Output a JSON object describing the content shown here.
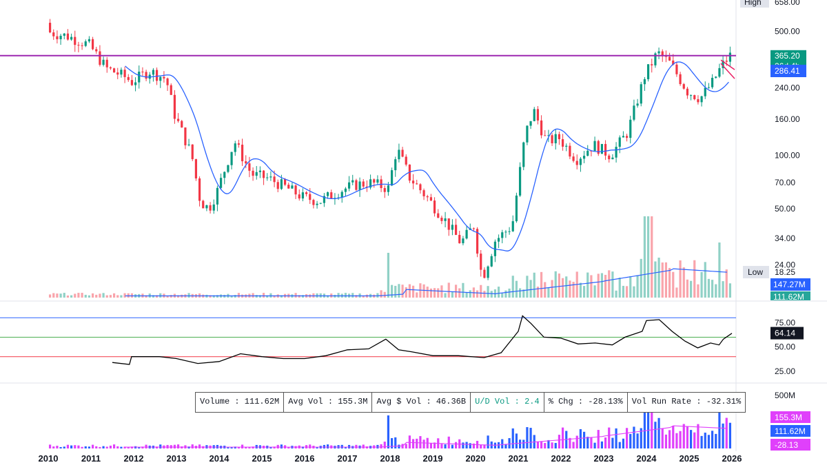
{
  "chart_data": {
    "type": "candlestick",
    "price_scale": "log",
    "price_axis_ticks": [
      "658.00",
      "500.00",
      "365.20",
      "240.00",
      "160.00",
      "100.00",
      "70.00",
      "50.00",
      "34.00",
      "24.00",
      "18.25"
    ],
    "price_ticks_numeric": [
      658,
      500,
      365.2,
      240,
      160,
      100,
      70,
      50,
      34,
      24,
      18.25
    ],
    "high": {
      "label": "High",
      "value": "658.00"
    },
    "low": {
      "label": "Low",
      "value": "18.25"
    },
    "last_price": "365.20",
    "countdown": "26d 4h",
    "moving_average": "286.41",
    "horizontal_line": 365.2,
    "volume_ma_value": "147.27M",
    "volume_last": "111.62M",
    "x_ticks": [
      "2010",
      "2011",
      "2012",
      "2013",
      "2014",
      "2015",
      "2016",
      "2017",
      "2018",
      "2019",
      "2020",
      "2021",
      "2022",
      "2023",
      "2024",
      "2025",
      "2026"
    ],
    "ohlc_close_approx": [
      {
        "t": 2010.0,
        "v": 500
      },
      {
        "t": 2010.5,
        "v": 470
      },
      {
        "t": 2011.0,
        "v": 420
      },
      {
        "t": 2011.4,
        "v": 310
      },
      {
        "t": 2011.8,
        "v": 280
      },
      {
        "t": 2012.0,
        "v": 260
      },
      {
        "t": 2012.4,
        "v": 300
      },
      {
        "t": 2012.8,
        "v": 270
      },
      {
        "t": 2013.0,
        "v": 170
      },
      {
        "t": 2013.4,
        "v": 100
      },
      {
        "t": 2013.6,
        "v": 55
      },
      {
        "t": 2013.8,
        "v": 50
      },
      {
        "t": 2014.0,
        "v": 63
      },
      {
        "t": 2014.4,
        "v": 120
      },
      {
        "t": 2014.8,
        "v": 78
      },
      {
        "t": 2015.2,
        "v": 74
      },
      {
        "t": 2015.6,
        "v": 66
      },
      {
        "t": 2016.0,
        "v": 58
      },
      {
        "t": 2016.4,
        "v": 55
      },
      {
        "t": 2016.8,
        "v": 62
      },
      {
        "t": 2017.2,
        "v": 68
      },
      {
        "t": 2017.6,
        "v": 70
      },
      {
        "t": 2018.0,
        "v": 65
      },
      {
        "t": 2018.2,
        "v": 110
      },
      {
        "t": 2018.5,
        "v": 75
      },
      {
        "t": 2018.9,
        "v": 58
      },
      {
        "t": 2019.3,
        "v": 44
      },
      {
        "t": 2019.7,
        "v": 32
      },
      {
        "t": 2020.0,
        "v": 40
      },
      {
        "t": 2020.2,
        "v": 20
      },
      {
        "t": 2020.5,
        "v": 33
      },
      {
        "t": 2020.9,
        "v": 40
      },
      {
        "t": 2021.2,
        "v": 130
      },
      {
        "t": 2021.4,
        "v": 180
      },
      {
        "t": 2021.7,
        "v": 120
      },
      {
        "t": 2022.0,
        "v": 125
      },
      {
        "t": 2022.4,
        "v": 95
      },
      {
        "t": 2022.8,
        "v": 115
      },
      {
        "t": 2023.2,
        "v": 100
      },
      {
        "t": 2023.6,
        "v": 135
      },
      {
        "t": 2024.0,
        "v": 280
      },
      {
        "t": 2024.3,
        "v": 380
      },
      {
        "t": 2024.6,
        "v": 330
      },
      {
        "t": 2025.0,
        "v": 230
      },
      {
        "t": 2025.3,
        "v": 210
      },
      {
        "t": 2025.6,
        "v": 260
      },
      {
        "t": 2025.8,
        "v": 320
      },
      {
        "t": 2026.0,
        "v": 365
      }
    ],
    "rsi_panel": {
      "value": "64.14",
      "ticks": [
        "75.00",
        "50.00",
        "25.00"
      ],
      "lines": [
        80,
        60,
        37
      ]
    },
    "stats": {
      "volume": "Volume : 111.62M",
      "avg_vol": "Avg Vol : 155.3M",
      "avg_dollar_vol": "Avg $ Vol : 46.36B",
      "ud_vol": "U/D Vol : 2.4",
      "pct_chg": "% Chg : -28.13%",
      "vol_run_rate": "Vol Run Rate : -32.31%"
    },
    "volume_panel": {
      "ticks": [
        "500M"
      ],
      "tags": [
        "155.3M",
        "111.62M",
        "-28.13"
      ]
    },
    "colors": {
      "up": "#089981",
      "down": "#f23645",
      "ma": "#2962ff",
      "line": "#9c27b0",
      "rsi": "#000000",
      "vol_up": "#2962ff",
      "vol_down": "#e040fb"
    }
  }
}
